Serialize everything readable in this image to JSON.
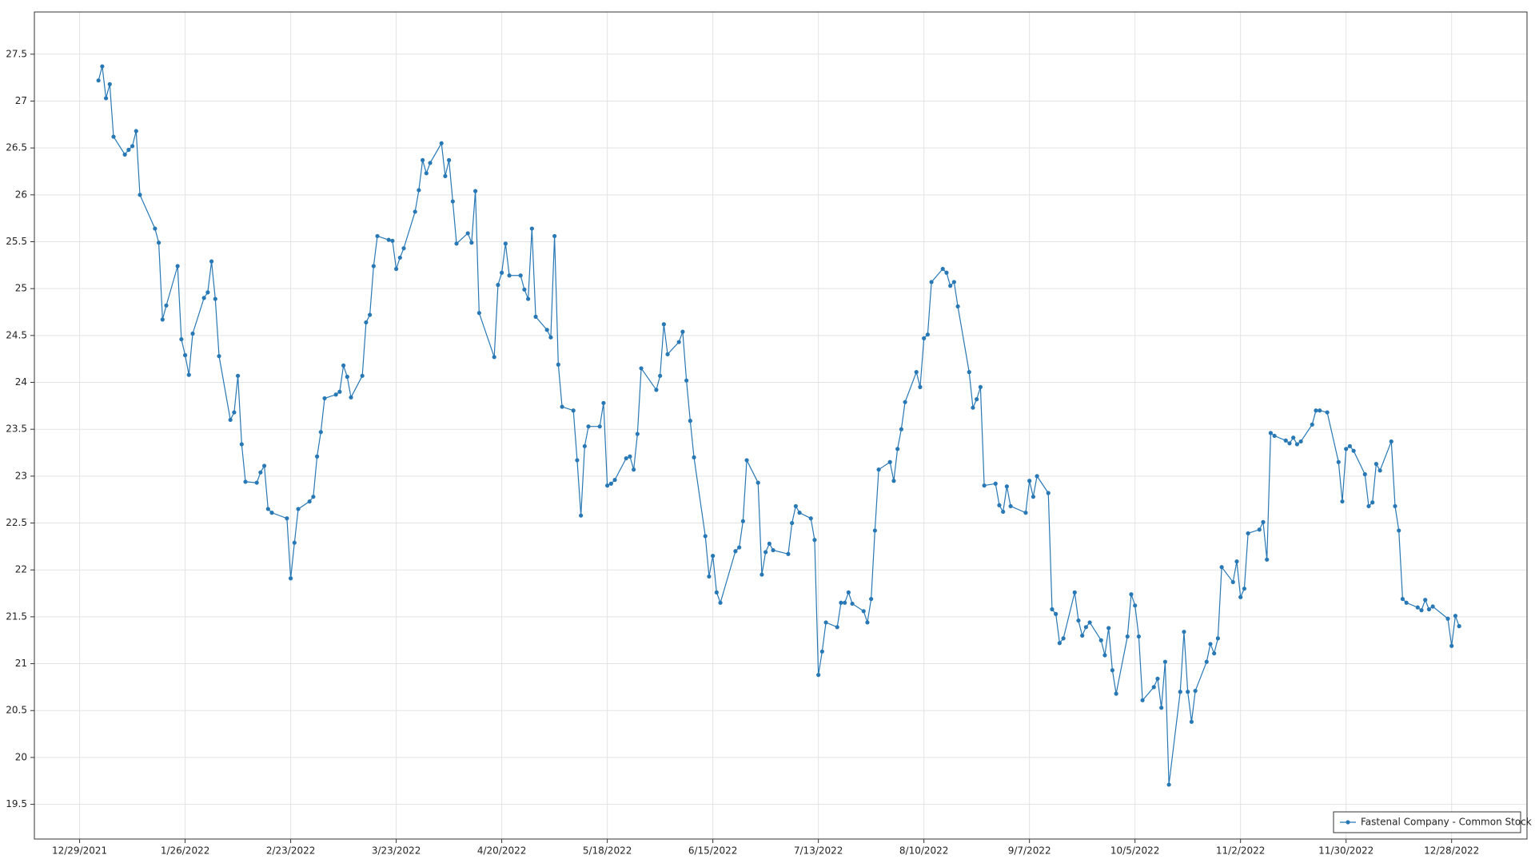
{
  "chart_data": {
    "type": "line",
    "legend": "lower right",
    "grid": true,
    "xlim": [
      "2021-12-17",
      "2023-01-17"
    ],
    "ylim": [
      19.13,
      27.95
    ],
    "yticks": [
      19.5,
      20,
      20.5,
      21,
      21.5,
      22,
      22.5,
      23,
      23.5,
      24,
      24.5,
      25,
      25.5,
      26,
      26.5,
      27,
      27.5
    ],
    "xticks": [
      {
        "value": "2021-12-29",
        "label": "12/29/2021"
      },
      {
        "value": "2022-01-26",
        "label": "1/26/2022"
      },
      {
        "value": "2022-02-23",
        "label": "2/23/2022"
      },
      {
        "value": "2022-03-23",
        "label": "3/23/2022"
      },
      {
        "value": "2022-04-20",
        "label": "4/20/2022"
      },
      {
        "value": "2022-05-18",
        "label": "5/18/2022"
      },
      {
        "value": "2022-06-15",
        "label": "6/15/2022"
      },
      {
        "value": "2022-07-13",
        "label": "7/13/2022"
      },
      {
        "value": "2022-08-10",
        "label": "8/10/2022"
      },
      {
        "value": "2022-09-07",
        "label": "9/7/2022"
      },
      {
        "value": "2022-10-05",
        "label": "10/5/2022"
      },
      {
        "value": "2022-11-02",
        "label": "11/2/2022"
      },
      {
        "value": "2022-11-30",
        "label": "11/30/2022"
      },
      {
        "value": "2022-12-28",
        "label": "12/28/2022"
      }
    ],
    "x": [
      "2022-01-03",
      "2022-01-04",
      "2022-01-05",
      "2022-01-06",
      "2022-01-07",
      "2022-01-10",
      "2022-01-11",
      "2022-01-12",
      "2022-01-13",
      "2022-01-14",
      "2022-01-18",
      "2022-01-19",
      "2022-01-20",
      "2022-01-21",
      "2022-01-24",
      "2022-01-25",
      "2022-01-26",
      "2022-01-27",
      "2022-01-28",
      "2022-01-31",
      "2022-02-01",
      "2022-02-02",
      "2022-02-03",
      "2022-02-04",
      "2022-02-07",
      "2022-02-08",
      "2022-02-09",
      "2022-02-10",
      "2022-02-11",
      "2022-02-14",
      "2022-02-15",
      "2022-02-16",
      "2022-02-17",
      "2022-02-18",
      "2022-02-22",
      "2022-02-23",
      "2022-02-24",
      "2022-02-25",
      "2022-02-28",
      "2022-03-01",
      "2022-03-02",
      "2022-03-03",
      "2022-03-04",
      "2022-03-07",
      "2022-03-08",
      "2022-03-09",
      "2022-03-10",
      "2022-03-11",
      "2022-03-14",
      "2022-03-15",
      "2022-03-16",
      "2022-03-17",
      "2022-03-18",
      "2022-03-21",
      "2022-03-22",
      "2022-03-23",
      "2022-03-24",
      "2022-03-25",
      "2022-03-28",
      "2022-03-29",
      "2022-03-30",
      "2022-03-31",
      "2022-04-01",
      "2022-04-04",
      "2022-04-05",
      "2022-04-06",
      "2022-04-07",
      "2022-04-08",
      "2022-04-11",
      "2022-04-12",
      "2022-04-13",
      "2022-04-14",
      "2022-04-18",
      "2022-04-19",
      "2022-04-20",
      "2022-04-21",
      "2022-04-22",
      "2022-04-25",
      "2022-04-26",
      "2022-04-27",
      "2022-04-28",
      "2022-04-29",
      "2022-05-02",
      "2022-05-03",
      "2022-05-04",
      "2022-05-05",
      "2022-05-06",
      "2022-05-09",
      "2022-05-10",
      "2022-05-11",
      "2022-05-12",
      "2022-05-13",
      "2022-05-16",
      "2022-05-17",
      "2022-05-18",
      "2022-05-19",
      "2022-05-20",
      "2022-05-23",
      "2022-05-24",
      "2022-05-25",
      "2022-05-26",
      "2022-05-27",
      "2022-05-31",
      "2022-06-01",
      "2022-06-02",
      "2022-06-03",
      "2022-06-06",
      "2022-06-07",
      "2022-06-08",
      "2022-06-09",
      "2022-06-10",
      "2022-06-13",
      "2022-06-14",
      "2022-06-15",
      "2022-06-16",
      "2022-06-17",
      "2022-06-21",
      "2022-06-22",
      "2022-06-23",
      "2022-06-24",
      "2022-06-27",
      "2022-06-28",
      "2022-06-29",
      "2022-06-30",
      "2022-07-01",
      "2022-07-05",
      "2022-07-06",
      "2022-07-07",
      "2022-07-08",
      "2022-07-11",
      "2022-07-12",
      "2022-07-13",
      "2022-07-14",
      "2022-07-15",
      "2022-07-18",
      "2022-07-19",
      "2022-07-20",
      "2022-07-21",
      "2022-07-22",
      "2022-07-25",
      "2022-07-26",
      "2022-07-27",
      "2022-07-28",
      "2022-07-29",
      "2022-08-01",
      "2022-08-02",
      "2022-08-03",
      "2022-08-04",
      "2022-08-05",
      "2022-08-08",
      "2022-08-09",
      "2022-08-10",
      "2022-08-11",
      "2022-08-12",
      "2022-08-15",
      "2022-08-16",
      "2022-08-17",
      "2022-08-18",
      "2022-08-19",
      "2022-08-22",
      "2022-08-23",
      "2022-08-24",
      "2022-08-25",
      "2022-08-26",
      "2022-08-29",
      "2022-08-30",
      "2022-08-31",
      "2022-09-01",
      "2022-09-02",
      "2022-09-06",
      "2022-09-07",
      "2022-09-08",
      "2022-09-09",
      "2022-09-12",
      "2022-09-13",
      "2022-09-14",
      "2022-09-15",
      "2022-09-16",
      "2022-09-19",
      "2022-09-20",
      "2022-09-21",
      "2022-09-22",
      "2022-09-23",
      "2022-09-26",
      "2022-09-27",
      "2022-09-28",
      "2022-09-29",
      "2022-09-30",
      "2022-10-03",
      "2022-10-04",
      "2022-10-05",
      "2022-10-06",
      "2022-10-07",
      "2022-10-10",
      "2022-10-11",
      "2022-10-12",
      "2022-10-13",
      "2022-10-14",
      "2022-10-17",
      "2022-10-18",
      "2022-10-19",
      "2022-10-20",
      "2022-10-21",
      "2022-10-24",
      "2022-10-25",
      "2022-10-26",
      "2022-10-27",
      "2022-10-28",
      "2022-10-31",
      "2022-11-01",
      "2022-11-02",
      "2022-11-03",
      "2022-11-04",
      "2022-11-07",
      "2022-11-08",
      "2022-11-09",
      "2022-11-10",
      "2022-11-11",
      "2022-11-14",
      "2022-11-15",
      "2022-11-16",
      "2022-11-17",
      "2022-11-18",
      "2022-11-21",
      "2022-11-22",
      "2022-11-23",
      "2022-11-25",
      "2022-11-28",
      "2022-11-29",
      "2022-11-30",
      "2022-12-01",
      "2022-12-02",
      "2022-12-05",
      "2022-12-06",
      "2022-12-07",
      "2022-12-08",
      "2022-12-09",
      "2022-12-12",
      "2022-12-13",
      "2022-12-14",
      "2022-12-15",
      "2022-12-16",
      "2022-12-19",
      "2022-12-20",
      "2022-12-21",
      "2022-12-22",
      "2022-12-23",
      "2022-12-27",
      "2022-12-28",
      "2022-12-29",
      "2022-12-30"
    ],
    "series": [
      {
        "name": "Fastenal Company - Common Stock",
        "color": "#2878b5",
        "values": [
          27.22,
          27.37,
          27.03,
          27.18,
          26.62,
          26.43,
          26.48,
          26.52,
          26.68,
          26.0,
          25.64,
          25.49,
          24.67,
          24.82,
          25.24,
          24.46,
          24.29,
          24.08,
          24.52,
          24.9,
          24.96,
          25.29,
          24.89,
          24.28,
          23.6,
          23.68,
          24.07,
          23.34,
          22.94,
          22.93,
          23.04,
          23.11,
          22.65,
          22.61,
          22.55,
          21.91,
          22.29,
          22.65,
          22.73,
          22.78,
          23.21,
          23.47,
          23.83,
          23.87,
          23.9,
          24.18,
          24.06,
          23.84,
          24.07,
          24.64,
          24.72,
          25.24,
          25.56,
          25.52,
          25.51,
          25.21,
          25.33,
          25.43,
          25.82,
          26.05,
          26.37,
          26.23,
          26.34,
          26.55,
          26.2,
          26.37,
          25.93,
          25.48,
          25.59,
          25.49,
          26.04,
          24.74,
          24.27,
          25.04,
          25.17,
          25.48,
          25.14,
          25.14,
          24.99,
          24.89,
          25.64,
          24.7,
          24.56,
          24.48,
          25.56,
          24.19,
          23.74,
          23.7,
          23.17,
          22.58,
          23.32,
          23.53,
          23.53,
          23.78,
          22.9,
          22.92,
          22.96,
          23.19,
          23.21,
          23.07,
          23.45,
          24.15,
          23.92,
          24.07,
          24.62,
          24.3,
          24.43,
          24.54,
          24.02,
          23.59,
          23.2,
          22.36,
          21.93,
          22.15,
          21.76,
          21.65,
          22.2,
          22.24,
          22.52,
          23.17,
          22.93,
          21.95,
          22.19,
          22.28,
          22.21,
          22.17,
          22.5,
          22.68,
          22.61,
          22.55,
          22.32,
          20.88,
          21.13,
          21.44,
          21.39,
          21.65,
          21.65,
          21.76,
          21.64,
          21.56,
          21.44,
          21.69,
          22.42,
          23.07,
          23.15,
          22.95,
          23.29,
          23.5,
          23.79,
          24.11,
          23.95,
          24.47,
          24.51,
          25.07,
          25.21,
          25.17,
          25.03,
          25.07,
          24.81,
          24.11,
          23.73,
          23.82,
          23.95,
          22.9,
          22.92,
          22.69,
          22.62,
          22.89,
          22.68,
          22.61,
          22.95,
          22.78,
          23.0,
          22.82,
          21.58,
          21.53,
          21.22,
          21.27,
          21.76,
          21.46,
          21.3,
          21.39,
          21.44,
          21.25,
          21.09,
          21.38,
          20.93,
          20.68,
          21.29,
          21.74,
          21.62,
          21.29,
          20.61,
          20.75,
          20.84,
          20.53,
          21.02,
          19.71,
          20.7,
          21.34,
          20.7,
          20.38,
          20.71,
          21.02,
          21.21,
          21.11,
          21.27,
          22.03,
          21.87,
          22.09,
          21.71,
          21.8,
          22.39,
          22.43,
          22.51,
          22.11,
          23.46,
          23.43,
          23.38,
          23.35,
          23.41,
          23.34,
          23.37,
          23.55,
          23.7,
          23.7,
          23.68,
          23.15,
          22.73,
          23.29,
          23.32,
          23.27,
          23.02,
          22.68,
          22.72,
          23.13,
          23.06,
          23.37,
          22.68,
          22.42,
          21.69,
          21.65,
          21.6,
          21.57,
          21.68,
          21.58,
          21.61,
          21.48,
          21.19,
          21.51,
          21.4
        ]
      }
    ]
  }
}
